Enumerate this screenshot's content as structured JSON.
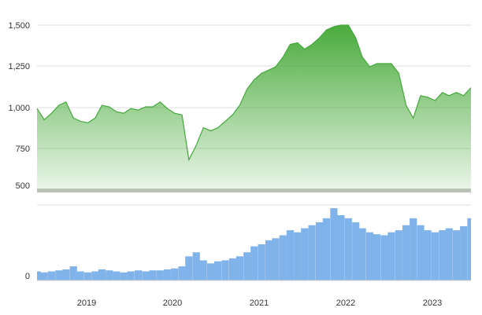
{
  "chart_data": [
    {
      "type": "area",
      "title": "",
      "xlabel": "",
      "ylabel": "",
      "x_ticks": [
        "2019",
        "2020",
        "2021",
        "2022",
        "2023"
      ],
      "x_range": [
        "2018-06",
        "2023-06"
      ],
      "y_ticks": [
        "500",
        "750",
        "1,000",
        "1,250",
        "1,500"
      ],
      "ylim": [
        450,
        1530
      ],
      "grid": true,
      "legend": "none",
      "color": "#4aab3c",
      "series": [
        {
          "x": [
            "2018-06-01",
            "2018-07-01",
            "2018-08-01",
            "2018-09-01",
            "2018-10-01",
            "2018-11-01",
            "2018-12-01",
            "2019-01-01",
            "2019-02-01",
            "2019-03-01",
            "2019-04-01",
            "2019-05-01",
            "2019-06-01",
            "2019-07-01",
            "2019-08-01",
            "2019-09-01",
            "2019-10-01",
            "2019-11-01",
            "2019-12-01",
            "2020-01-01",
            "2020-02-01",
            "2020-03-01",
            "2020-04-01",
            "2020-05-01",
            "2020-06-01",
            "2020-07-01",
            "2020-08-01",
            "2020-09-01",
            "2020-10-01",
            "2020-11-01",
            "2020-12-01",
            "2021-01-01",
            "2021-02-01",
            "2021-03-01",
            "2021-04-01",
            "2021-05-01",
            "2021-06-01",
            "2021-07-01",
            "2021-08-01",
            "2021-09-01",
            "2021-10-01",
            "2021-11-01",
            "2021-12-01",
            "2022-01-01",
            "2022-02-01",
            "2022-03-01",
            "2022-04-01",
            "2022-05-01",
            "2022-06-01",
            "2022-07-01",
            "2022-08-01",
            "2022-09-01",
            "2022-10-01",
            "2022-11-01",
            "2022-12-01",
            "2023-01-01",
            "2023-02-01",
            "2023-03-01",
            "2023-04-01",
            "2023-05-01",
            "2023-06-01"
          ],
          "values": [
            980,
            910,
            950,
            1000,
            1020,
            920,
            900,
            890,
            920,
            1000,
            990,
            960,
            950,
            980,
            970,
            990,
            990,
            1020,
            980,
            950,
            940,
            660,
            750,
            860,
            840,
            860,
            900,
            940,
            1000,
            1100,
            1160,
            1200,
            1220,
            1240,
            1300,
            1380,
            1390,
            1350,
            1380,
            1420,
            1470,
            1490,
            1500,
            1500,
            1420,
            1300,
            1240,
            1260,
            1260,
            1260,
            1200,
            1000,
            920,
            1060,
            1050,
            1030,
            1080,
            1060,
            1080,
            1060,
            1110
          ]
        }
      ]
    },
    {
      "type": "bar",
      "title": "",
      "xlabel": "",
      "ylabel": "",
      "y_ticks": [
        "0"
      ],
      "grid": false,
      "color": "#7fb3ea",
      "series": [
        {
          "x": [
            "2018-06-01",
            "2018-07-01",
            "2018-08-01",
            "2018-09-01",
            "2018-10-01",
            "2018-11-01",
            "2018-12-01",
            "2019-01-01",
            "2019-02-01",
            "2019-03-01",
            "2019-04-01",
            "2019-05-01",
            "2019-06-01",
            "2019-07-01",
            "2019-08-01",
            "2019-09-01",
            "2019-10-01",
            "2019-11-01",
            "2019-12-01",
            "2020-01-01",
            "2020-02-01",
            "2020-03-01",
            "2020-04-01",
            "2020-05-01",
            "2020-06-01",
            "2020-07-01",
            "2020-08-01",
            "2020-09-01",
            "2020-10-01",
            "2020-11-01",
            "2020-12-01",
            "2021-01-01",
            "2021-02-01",
            "2021-03-01",
            "2021-04-01",
            "2021-05-01",
            "2021-06-01",
            "2021-07-01",
            "2021-08-01",
            "2021-09-01",
            "2021-10-01",
            "2021-11-01",
            "2021-12-01",
            "2022-01-01",
            "2022-02-01",
            "2022-03-01",
            "2022-04-01",
            "2022-05-01",
            "2022-06-01",
            "2022-07-01",
            "2022-08-01",
            "2022-09-01",
            "2022-10-01",
            "2022-11-01",
            "2022-12-01",
            "2023-01-01",
            "2023-02-01",
            "2023-03-01",
            "2023-04-01",
            "2023-05-01",
            "2023-06-01"
          ],
          "values": [
            9,
            8,
            9,
            10,
            11,
            14,
            9,
            8,
            9,
            11,
            10,
            9,
            8,
            9,
            10,
            9,
            10,
            10,
            11,
            12,
            14,
            24,
            28,
            20,
            17,
            19,
            20,
            22,
            24,
            28,
            34,
            36,
            40,
            42,
            45,
            50,
            48,
            52,
            55,
            58,
            62,
            72,
            65,
            62,
            58,
            52,
            48,
            46,
            45,
            48,
            50,
            55,
            62,
            55,
            50,
            48,
            50,
            52,
            50,
            54,
            62
          ]
        }
      ]
    }
  ]
}
